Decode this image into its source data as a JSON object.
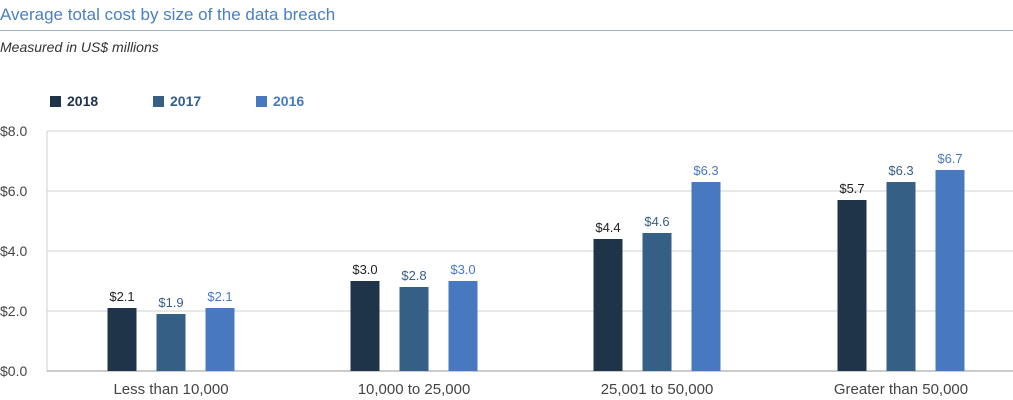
{
  "header": {
    "title": "Average total cost by size of the data breach",
    "subtitle": "Measured in US$ millions"
  },
  "colors": {
    "series_2018": "#1f3449",
    "series_2017": "#355f85",
    "series_2016": "#4879c0",
    "grid": "#d0d0d0",
    "axis_text": "#444444",
    "title": "#4a7fc1"
  },
  "chart_data": {
    "type": "bar",
    "title": "Average total cost by size of the data breach",
    "subtitle": "Measured in US$ millions",
    "categories": [
      "Less than 10,000",
      "10,000 to 25,000",
      "25,001 to 50,000",
      "Greater than 50,000"
    ],
    "series": [
      {
        "name": "2018",
        "values": [
          2.1,
          3.0,
          4.4,
          5.7
        ],
        "labels": [
          "$2.1",
          "$3.0",
          "$4.4",
          "$5.7"
        ]
      },
      {
        "name": "2017",
        "values": [
          1.9,
          2.8,
          4.6,
          6.3
        ],
        "labels": [
          "$1.9",
          "$2.8",
          "$4.6",
          "$6.3"
        ]
      },
      {
        "name": "2016",
        "values": [
          2.1,
          3.0,
          6.3,
          6.7
        ],
        "labels": [
          "$2.1",
          "$3.0",
          "$6.3",
          "$6.7"
        ]
      }
    ],
    "yticks": [
      0,
      2,
      4,
      6,
      8
    ],
    "ytick_labels": [
      "$0.0",
      "$2.0",
      "$4.0",
      "$6.0",
      "$8.0"
    ],
    "ylim": [
      0,
      8
    ],
    "grid": true,
    "legend_position": "top-left",
    "xlabel": "",
    "ylabel": ""
  }
}
